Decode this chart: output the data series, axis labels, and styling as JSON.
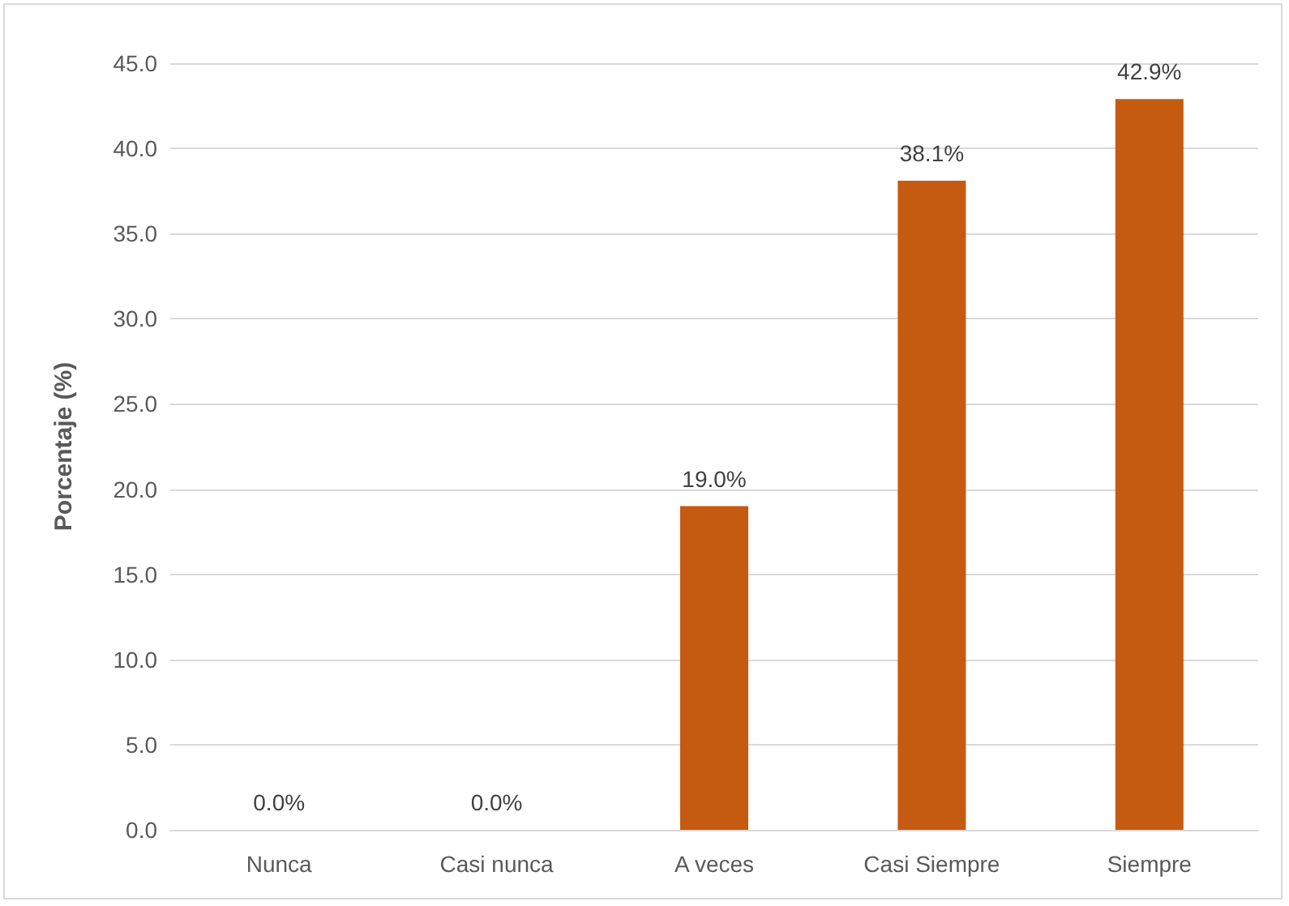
{
  "chart_data": {
    "type": "bar",
    "ylabel": "Porcentaje (%)",
    "categories": [
      "Nunca",
      "Casi nunca",
      "A veces",
      "Casi Siempre",
      "Siempre"
    ],
    "values": [
      0,
      0,
      19.0,
      38.1,
      42.9
    ],
    "value_labels": [
      "0.0%",
      "0.0%",
      "19.0%",
      "38.1%",
      "42.9%"
    ],
    "color": "#c55a11",
    "ylim": [
      0,
      45
    ],
    "yticks": [
      {
        "value": 0,
        "label": "0.0"
      },
      {
        "value": 5,
        "label": "5.0"
      },
      {
        "value": 10,
        "label": "10.0"
      },
      {
        "value": 15,
        "label": "15.0"
      },
      {
        "value": 20,
        "label": "20.0"
      },
      {
        "value": 25,
        "label": "25.0"
      },
      {
        "value": 30,
        "label": "30.0"
      },
      {
        "value": 35,
        "label": "35.0"
      },
      {
        "value": 40,
        "label": "40.0"
      },
      {
        "value": 45,
        "label": "45.0"
      }
    ],
    "grid": "y"
  }
}
